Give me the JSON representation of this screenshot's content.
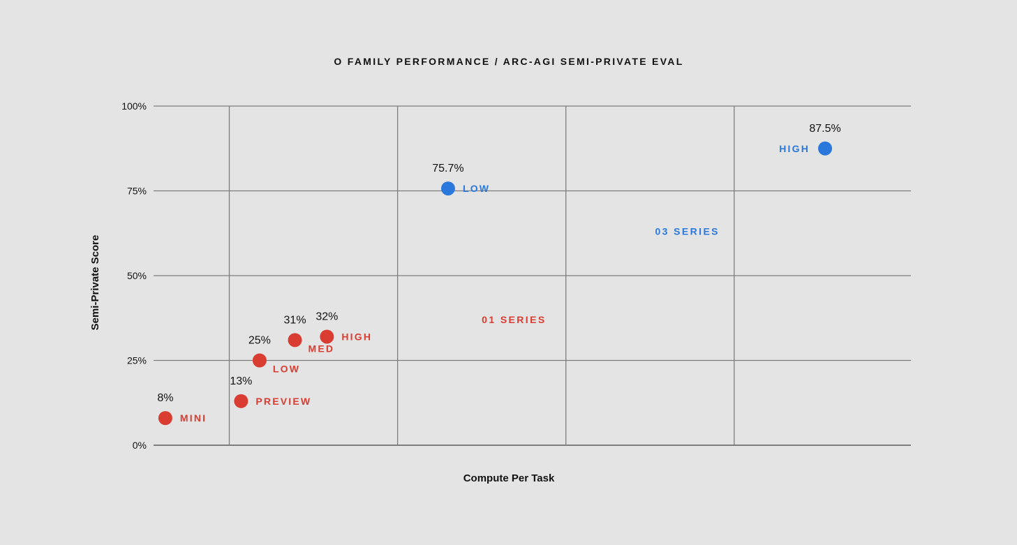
{
  "chart_data": {
    "type": "scatter",
    "title": "O FAMILY PERFORMANCE / ARC-AGI SEMI-PRIVATE EVAL",
    "xlabel": "Compute Per Task",
    "ylabel": "Semi-Private Score",
    "ylim": [
      0,
      100
    ],
    "xlim": [
      0,
      4.5
    ],
    "y_ticks": [
      {
        "value": 0,
        "label": "0%"
      },
      {
        "value": 25,
        "label": "25%"
      },
      {
        "value": 50,
        "label": "50%"
      },
      {
        "value": 75,
        "label": "75%"
      },
      {
        "value": 100,
        "label": "100%"
      }
    ],
    "x_gridlines": [
      0.45,
      1.45,
      2.45,
      3.45
    ],
    "x_ticks_shown": false,
    "grid": true,
    "series": [
      {
        "name": "O1 SERIES",
        "label": "01 SERIES",
        "color": "#d93c30",
        "label_pos": {
          "x": 1.95,
          "y": 36
        },
        "points": [
          {
            "name": "MINI",
            "x": 0.07,
            "y": 8,
            "value_label": "8%",
            "label_side": "right"
          },
          {
            "name": "PREVIEW",
            "x": 0.52,
            "y": 13,
            "value_label": "13%",
            "label_side": "right"
          },
          {
            "name": "LOW",
            "x": 0.63,
            "y": 25,
            "value_label": "25%",
            "label_side": "below-right"
          },
          {
            "name": "MED",
            "x": 0.84,
            "y": 31,
            "value_label": "31%",
            "label_side": "below-right"
          },
          {
            "name": "HIGH",
            "x": 1.03,
            "y": 32,
            "value_label": "32%",
            "label_side": "right"
          }
        ]
      },
      {
        "name": "O3 SERIES",
        "label": "03 SERIES",
        "color": "#2b78dc",
        "label_pos": {
          "x": 2.98,
          "y": 62
        },
        "points": [
          {
            "name": "LOW",
            "x": 1.75,
            "y": 75.7,
            "value_label": "75.7%",
            "label_side": "right"
          },
          {
            "name": "HIGH",
            "x": 3.99,
            "y": 87.5,
            "value_label": "87.5%",
            "label_side": "left"
          }
        ]
      }
    ]
  },
  "colors": {
    "background": "#e4e4e4",
    "grid": "#7d7d7d",
    "text": "#111111"
  }
}
